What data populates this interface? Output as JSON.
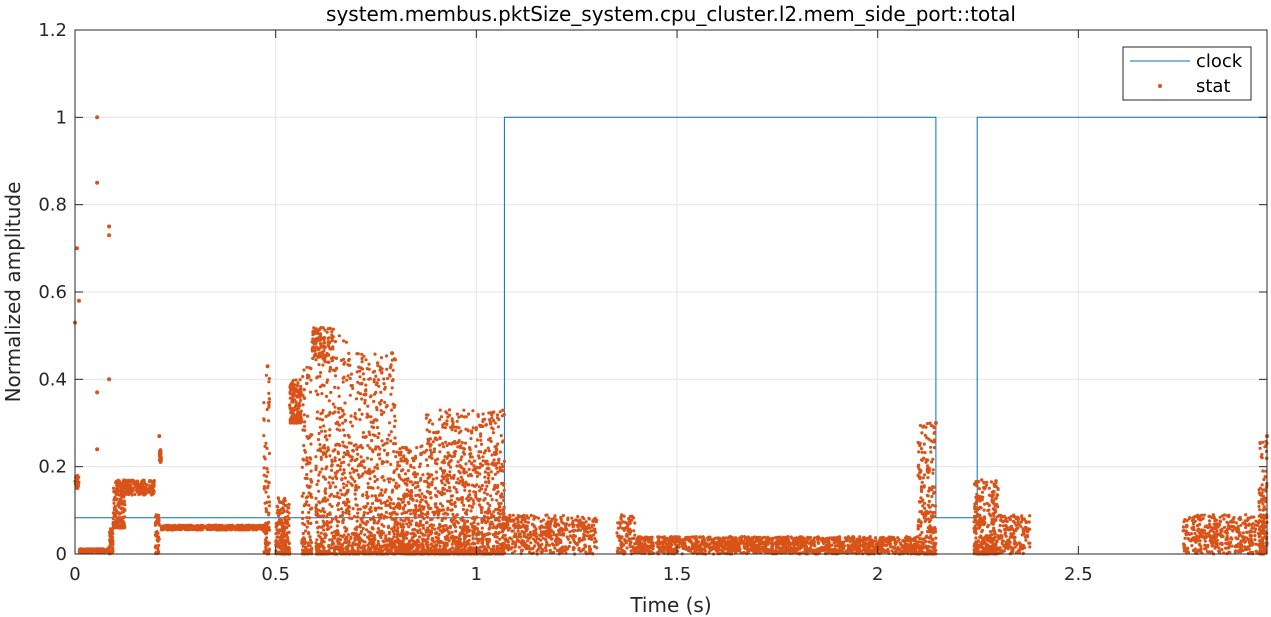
{
  "chart_data": {
    "type": "line",
    "title": "system.membus.pktSize_system.cpu_cluster.l2.mem_side_port::total",
    "xlabel": "Time (s)",
    "ylabel": "Normalized amplitude",
    "xlim": [
      0,
      2.97
    ],
    "ylim": [
      0,
      1.2
    ],
    "x_ticks": [
      0,
      0.5,
      1,
      1.5,
      2,
      2.5
    ],
    "x_tick_labels": [
      "0",
      "0.5",
      "1",
      "1.5",
      "2",
      "2.5"
    ],
    "y_ticks": [
      0,
      0.2,
      0.4,
      0.6,
      0.8,
      1.0,
      1.2
    ],
    "y_tick_labels": [
      "0",
      "0.2",
      "0.4",
      "0.6",
      "0.8",
      "1",
      "1.2"
    ],
    "grid": true,
    "legend_position": "top-right",
    "colors": {
      "clock": "#0072bd",
      "stat": "#d95319"
    },
    "series": [
      {
        "name": "clock",
        "kind": "step-line",
        "points": [
          [
            0,
            0.083
          ],
          [
            1.07,
            0.083
          ],
          [
            1.07,
            1.0
          ],
          [
            2.145,
            1.0
          ],
          [
            2.145,
            0.083
          ],
          [
            2.248,
            0.083
          ],
          [
            2.248,
            1.0
          ],
          [
            2.97,
            1.0
          ],
          [
            2.97,
            0.0
          ]
        ]
      },
      {
        "name": "stat",
        "kind": "scatter",
        "segments": [
          {
            "x": [
              0.0,
              0.01
            ],
            "y": [
              0.15,
              0.18
            ]
          },
          {
            "x": [
              0.01,
              0.085
            ],
            "y": [
              0.003,
              0.012
            ]
          },
          {
            "x": [
              0.085,
              0.095
            ],
            "y": [
              0.0,
              0.06
            ]
          },
          {
            "x": [
              0.095,
              0.125
            ],
            "y": [
              0.06,
              0.17
            ]
          },
          {
            "x": [
              0.1,
              0.135
            ],
            "y": [
              0.14,
              0.17
            ]
          },
          {
            "x": [
              0.125,
              0.2
            ],
            "y": [
              0.135,
              0.17
            ]
          },
          {
            "x": [
              0.2,
              0.21
            ],
            "y": [
              0.0,
              0.09
            ]
          },
          {
            "x": [
              0.21,
              0.215
            ],
            "y": [
              0.21,
              0.24
            ]
          },
          {
            "x": [
              0.215,
              0.48
            ],
            "y": [
              0.055,
              0.066
            ]
          },
          {
            "x": [
              0.47,
              0.485
            ],
            "y": [
              0.0,
              0.43
            ]
          },
          {
            "x": [
              0.5,
              0.535
            ],
            "y": [
              0.0,
              0.13
            ]
          },
          {
            "x": [
              0.535,
              0.565
            ],
            "y": [
              0.3,
              0.4
            ]
          },
          {
            "x": [
              0.565,
              0.59
            ],
            "y": [
              0.0,
              0.43
            ]
          },
          {
            "x": [
              0.59,
              0.645
            ],
            "y": [
              0.44,
              0.52
            ]
          },
          {
            "x": [
              0.6,
              0.68
            ],
            "y": [
              0.0,
              0.5
            ]
          },
          {
            "x": [
              0.68,
              0.745
            ],
            "y": [
              0.0,
              0.46
            ]
          },
          {
            "x": [
              0.745,
              0.8
            ],
            "y": [
              0.0,
              0.46
            ]
          },
          {
            "x": [
              0.8,
              0.875
            ],
            "y": [
              0.0,
              0.25
            ]
          },
          {
            "x": [
              0.875,
              1.07
            ],
            "y": [
              0.0,
              0.33
            ]
          },
          {
            "x": [
              1.07,
              1.3
            ],
            "y": [
              0.0,
              0.09
            ]
          },
          {
            "x": [
              1.35,
              1.4
            ],
            "y": [
              0.0,
              0.09
            ]
          },
          {
            "x": [
              1.4,
              2.1
            ],
            "y": [
              0.0,
              0.04
            ]
          },
          {
            "x": [
              2.1,
              2.145
            ],
            "y": [
              0.0,
              0.3
            ]
          },
          {
            "x": [
              2.24,
              2.3
            ],
            "y": [
              0.0,
              0.17
            ]
          },
          {
            "x": [
              2.3,
              2.38
            ],
            "y": [
              0.0,
              0.09
            ]
          },
          {
            "x": [
              2.76,
              2.97
            ],
            "y": [
              0.0,
              0.09
            ]
          },
          {
            "x": [
              2.95,
              2.97
            ],
            "y": [
              0.0,
              0.27
            ]
          }
        ],
        "outliers": [
          [
            0.0,
            0.53
          ],
          [
            0.01,
            0.58
          ],
          [
            0.005,
            0.7
          ],
          [
            0.055,
            1.0
          ],
          [
            0.055,
            0.85
          ],
          [
            0.085,
            0.75
          ],
          [
            0.085,
            0.73
          ],
          [
            0.085,
            0.4
          ],
          [
            0.055,
            0.37
          ],
          [
            0.055,
            0.24
          ],
          [
            0.21,
            0.27
          ],
          [
            0.48,
            0.43
          ],
          [
            0.79,
            0.46
          ],
          [
            2.145,
            0.3
          ],
          [
            2.97,
            0.27
          ]
        ]
      }
    ]
  }
}
